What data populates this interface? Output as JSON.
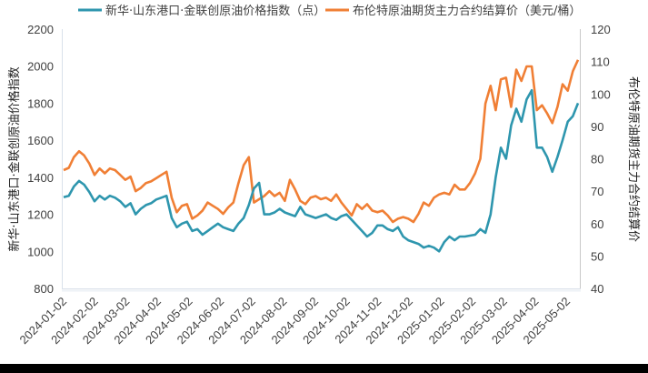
{
  "chart_data": {
    "type": "line",
    "title": "",
    "legend": {
      "position": "top",
      "entries": [
        {
          "label": "新华·山东港口·金联创原油价格指数（点）",
          "color": "#2E96AE",
          "axis": "left"
        },
        {
          "label": "布伦特原油期货主力合约结算价（美元/桶）",
          "color": "#F07F35",
          "axis": "right"
        }
      ]
    },
    "xlabel": "",
    "ylabel": "新华·山东港口·金联创原油价格指数",
    "ylabel_right": "布伦特原油期货主力合约结算价",
    "ylim": [
      800,
      2200
    ],
    "ylim_right": [
      40,
      120
    ],
    "yticks": [
      800,
      1000,
      1200,
      1400,
      1600,
      1800,
      2000,
      2200
    ],
    "yticks_right": [
      40,
      50,
      60,
      70,
      80,
      90,
      100,
      110,
      120
    ],
    "x_tick_labels": [
      "2024-01-02",
      "2024-02-02",
      "2024-03-02",
      "2024-04-02",
      "2024-05-02",
      "2024-06-02",
      "2024-07-02",
      "2024-08-02",
      "2024-09-02",
      "2024-10-02",
      "2024-11-02",
      "2024-12-02",
      "2025-01-02",
      "2025-02-02",
      "2025-03-02",
      "2025-04-02",
      "2025-05-02"
    ],
    "grid": false,
    "x": [
      0,
      2,
      4,
      6,
      8,
      10,
      12,
      14,
      16,
      18,
      20,
      22,
      24,
      26,
      28,
      30,
      32,
      34,
      36,
      38,
      40,
      42,
      44,
      46,
      48,
      50,
      52,
      54,
      56,
      58,
      60,
      62,
      64,
      66,
      68,
      70,
      72,
      74,
      76,
      78,
      80,
      82,
      84,
      86,
      88,
      90,
      92,
      94,
      96,
      98,
      100,
      102,
      104,
      106,
      108,
      110,
      112,
      114,
      116,
      118,
      120,
      122,
      124,
      126,
      128,
      130,
      132,
      134,
      136,
      138,
      140,
      142,
      144,
      146,
      148,
      150,
      152,
      154,
      156,
      158,
      160,
      162,
      164,
      166,
      168,
      170,
      172,
      174,
      176,
      178,
      180,
      182,
      184,
      186,
      188,
      190,
      192,
      194,
      196,
      198,
      200
    ],
    "series": [
      {
        "name": "新华·山东港口·金联创原油价格指数（点）",
        "axis": "left",
        "color": "#2E96AE",
        "values": [
          1292,
          1300,
          1350,
          1380,
          1360,
          1320,
          1270,
          1300,
          1280,
          1300,
          1290,
          1270,
          1240,
          1260,
          1200,
          1230,
          1250,
          1260,
          1280,
          1290,
          1300,
          1180,
          1130,
          1150,
          1160,
          1110,
          1120,
          1090,
          1110,
          1130,
          1150,
          1130,
          1120,
          1110,
          1150,
          1180,
          1250,
          1340,
          1370,
          1200,
          1200,
          1210,
          1230,
          1210,
          1200,
          1190,
          1240,
          1200,
          1190,
          1180,
          1190,
          1200,
          1180,
          1170,
          1190,
          1200,
          1170,
          1140,
          1110,
          1080,
          1100,
          1140,
          1140,
          1120,
          1110,
          1130,
          1080,
          1060,
          1050,
          1040,
          1020,
          1030,
          1020,
          1000,
          1050,
          1080,
          1060,
          1080,
          1080,
          1085,
          1090,
          1120,
          1100,
          1200,
          1400,
          1560,
          1500,
          1680,
          1770,
          1700,
          1820,
          1870,
          1560,
          1560,
          1510,
          1430,
          1510,
          1600,
          1700,
          1730,
          1800
        ]
      },
      {
        "name": "布伦特原油期货主力合约结算价（美元/桶）",
        "axis": "right",
        "color": "#F07F35",
        "values": [
          76.5,
          77.2,
          80.5,
          82.3,
          81.0,
          78.5,
          75.0,
          77.0,
          75.5,
          77.0,
          76.5,
          75.0,
          73.5,
          74.5,
          70.0,
          71.0,
          72.5,
          73.0,
          74.0,
          75.0,
          76.0,
          68.0,
          63.5,
          65.5,
          66.0,
          61.5,
          62.5,
          64.0,
          66.5,
          65.5,
          64.5,
          63.0,
          65.0,
          66.5,
          72.5,
          78.0,
          80.5,
          66.5,
          67.5,
          68.5,
          70.0,
          68.5,
          69.5,
          67.0,
          73.5,
          70.5,
          67.0,
          66.0,
          68.0,
          68.5,
          67.5,
          68.0,
          67.0,
          69.0,
          66.5,
          64.5,
          62.5,
          66.0,
          64.5,
          66.0,
          64.0,
          63.5,
          64.0,
          62.5,
          60.5,
          61.5,
          62.0,
          61.5,
          60.5,
          63.0,
          66.5,
          65.5,
          68.0,
          69.0,
          69.5,
          69.0,
          72.0,
          70.5,
          70.5,
          72.5,
          75.5,
          80.0,
          97.0,
          102.5,
          95.0,
          104.5,
          105.0,
          96.0,
          107.5,
          104.0,
          108.5,
          108.5,
          95.0,
          96.5,
          94.0,
          91.0,
          96.0,
          103.0,
          101.0,
          107.0,
          110.5
        ]
      }
    ]
  },
  "legend": {
    "item1": "新华·山东港口·金联创原油价格指数（点）",
    "item2": "布伦特原油期货主力合约结算价（美元/桶）"
  },
  "axes": {
    "left_title": "新华·山东港口·金联创原油价格指数",
    "right_title": "布伦特原油期货主力合约结算价"
  }
}
